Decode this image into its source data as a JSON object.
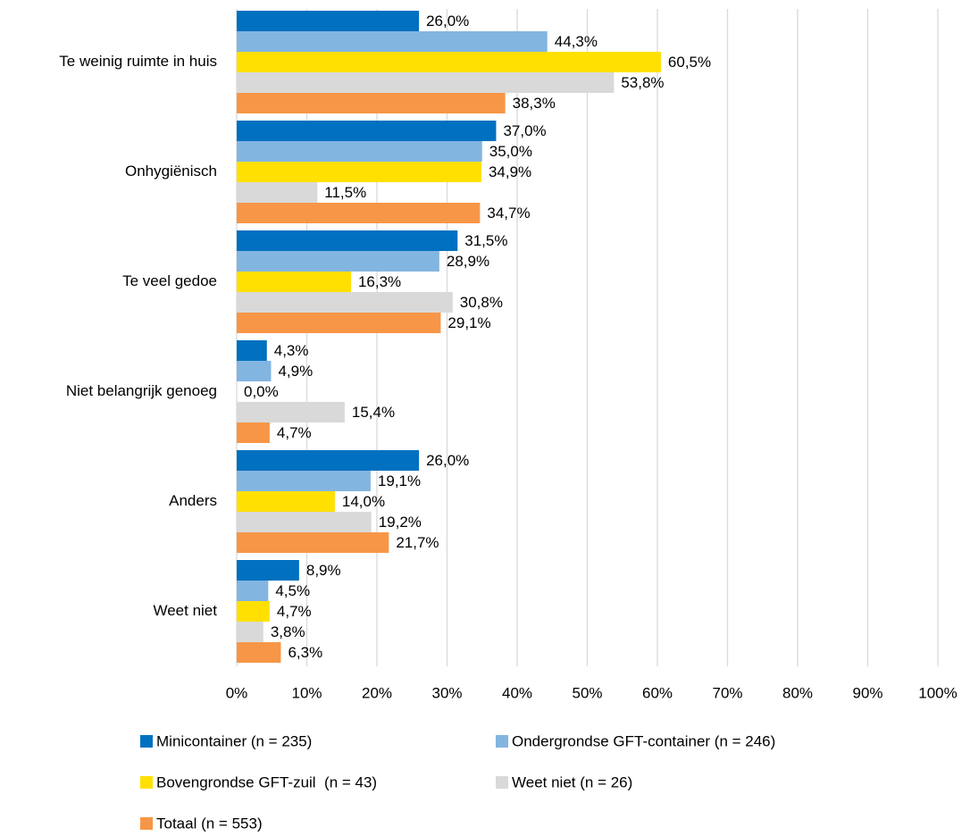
{
  "chart_data": {
    "type": "hbar",
    "categories": [
      "Te weinig ruimte in huis",
      "Onhygiënisch",
      "Te veel gedoe",
      "Niet belangrijk genoeg",
      "Anders",
      "Weet niet"
    ],
    "series": [
      {
        "name": "Minicontainer (n = 235)",
        "color": "#0070c0",
        "values": [
          26.0,
          37.0,
          31.5,
          4.3,
          26.0,
          8.9
        ],
        "value_labels": [
          "26,0%",
          "37,0%",
          "31,5%",
          "4,3%",
          "26,0%",
          "8,9%"
        ]
      },
      {
        "name": "Ondergrondse GFT-container (n = 246)",
        "color": "#83b5e1",
        "values": [
          44.3,
          35.0,
          28.9,
          4.9,
          19.1,
          4.5
        ],
        "value_labels": [
          "44,3%",
          "35,0%",
          "28,9%",
          "4,9%",
          "19,1%",
          "4,5%"
        ]
      },
      {
        "name": "Bovengrondse GFT-zuil  (n = 43)",
        "color": "#ffe000",
        "values": [
          60.5,
          34.9,
          16.3,
          0.0,
          14.0,
          4.7
        ],
        "value_labels": [
          "60,5%",
          "34,9%",
          "16,3%",
          "0,0%",
          "14,0%",
          "4,7%"
        ]
      },
      {
        "name": "Weet niet (n = 26)",
        "color": "#d9d9d9",
        "values": [
          53.8,
          11.5,
          30.8,
          15.4,
          19.2,
          3.8
        ],
        "value_labels": [
          "53,8%",
          "11,5%",
          "30,8%",
          "15,4%",
          "19,2%",
          "3,8%"
        ]
      },
      {
        "name": "Totaal (n = 553)",
        "color": "#f79646",
        "values": [
          38.3,
          34.7,
          29.1,
          4.7,
          21.7,
          6.3
        ],
        "value_labels": [
          "38,3%",
          "34,7%",
          "29,1%",
          "4,7%",
          "21,7%",
          "6,3%"
        ]
      }
    ],
    "xlim": [
      0,
      100
    ],
    "xticks": [
      {
        "value": 0,
        "label": "0%"
      },
      {
        "value": 10,
        "label": "10%"
      },
      {
        "value": 20,
        "label": "20%"
      },
      {
        "value": 30,
        "label": "30%"
      },
      {
        "value": 40,
        "label": "40%"
      },
      {
        "value": 50,
        "label": "50%"
      },
      {
        "value": 60,
        "label": "60%"
      },
      {
        "value": 70,
        "label": "70%"
      },
      {
        "value": 80,
        "label": "80%"
      },
      {
        "value": 90,
        "label": "90%"
      },
      {
        "value": 100,
        "label": "100%"
      }
    ],
    "grid": true
  }
}
